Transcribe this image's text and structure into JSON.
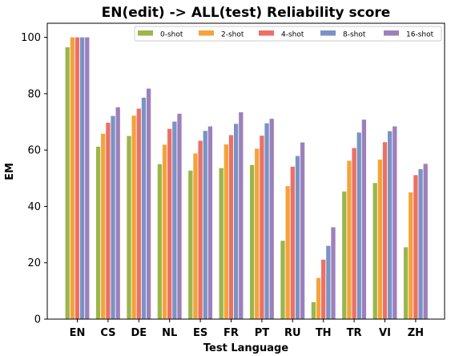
{
  "chart_data": {
    "type": "bar",
    "title": "EN(edit) -> ALL(test) Reliability score",
    "xlabel": "Test Language",
    "ylabel": "EM",
    "ylim": [
      0,
      105
    ],
    "yticks": [
      0,
      20,
      40,
      60,
      80,
      100
    ],
    "grid": false,
    "legend_position": "top-right",
    "categories": [
      "EN",
      "CS",
      "DE",
      "NL",
      "ES",
      "FR",
      "PT",
      "RU",
      "TH",
      "TR",
      "VI",
      "ZH"
    ],
    "series": [
      {
        "name": "0-shot",
        "color": "#9bb64b",
        "values": [
          96.5,
          61.2,
          65.0,
          55.0,
          52.7,
          53.6,
          54.7,
          27.8,
          6.0,
          45.3,
          48.3,
          25.5
        ]
      },
      {
        "name": "2-shot",
        "color": "#f4a33a",
        "values": [
          100.0,
          65.8,
          72.2,
          61.9,
          58.8,
          62.0,
          60.5,
          47.2,
          14.6,
          56.2,
          56.6,
          45.0
        ]
      },
      {
        "name": "4-shot",
        "color": "#ec7064",
        "values": [
          100.0,
          69.7,
          74.7,
          67.5,
          63.3,
          65.3,
          65.1,
          54.1,
          21.1,
          60.7,
          62.8,
          51.1
        ]
      },
      {
        "name": "8-shot",
        "color": "#7a93c4",
        "values": [
          100.0,
          72.1,
          78.6,
          70.1,
          66.8,
          69.3,
          69.5,
          57.9,
          26.0,
          66.2,
          66.7,
          53.2
        ]
      },
      {
        "name": "16-shot",
        "color": "#9d80bb",
        "values": [
          100.0,
          75.2,
          81.8,
          72.9,
          68.4,
          73.4,
          71.1,
          62.7,
          32.6,
          70.8,
          68.4,
          55.1
        ]
      }
    ]
  }
}
